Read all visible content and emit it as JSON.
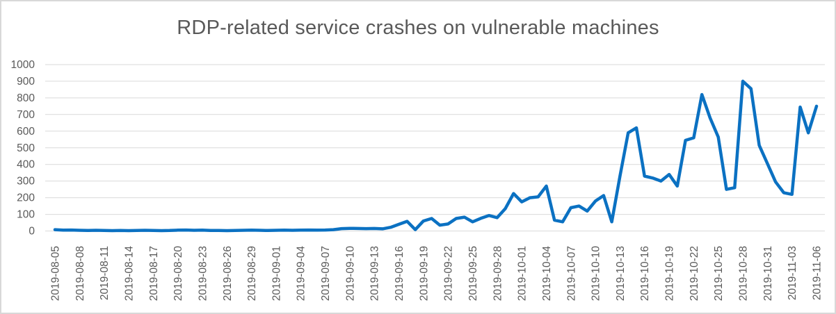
{
  "chart_data": {
    "type": "line",
    "title": "RDP-related service crashes on vulnerable machines",
    "legend": "none",
    "grid": true,
    "ylim": [
      0,
      1000
    ],
    "ytick_step": 100,
    "y_tick_values": [
      0,
      100,
      200,
      300,
      400,
      500,
      600,
      700,
      800,
      900,
      1000
    ],
    "label_every": 3,
    "x_tick_labels": [
      "2019-08-05",
      "2019-08-08",
      "2019-08-11",
      "2019-08-14",
      "2019-08-17",
      "2019-08-20",
      "2019-08-23",
      "2019-08-26",
      "2019-08-29",
      "2019-09-01",
      "2019-09-04",
      "2019-09-07",
      "2019-09-10",
      "2019-09-13",
      "2019-09-16",
      "2019-09-19",
      "2019-09-22",
      "2019-09-25",
      "2019-09-28",
      "2019-10-01",
      "2019-10-04",
      "2019-10-07",
      "2019-10-10",
      "2019-10-13",
      "2019-10-16",
      "2019-10-19",
      "2019-10-22",
      "2019-10-25",
      "2019-10-28",
      "2019-10-31",
      "2019-11-03",
      "2019-11-06"
    ],
    "x": [
      "2019-08-05",
      "2019-08-06",
      "2019-08-07",
      "2019-08-08",
      "2019-08-09",
      "2019-08-10",
      "2019-08-11",
      "2019-08-12",
      "2019-08-13",
      "2019-08-14",
      "2019-08-15",
      "2019-08-16",
      "2019-08-17",
      "2019-08-18",
      "2019-08-19",
      "2019-08-20",
      "2019-08-21",
      "2019-08-22",
      "2019-08-23",
      "2019-08-24",
      "2019-08-25",
      "2019-08-26",
      "2019-08-27",
      "2019-08-28",
      "2019-08-29",
      "2019-08-30",
      "2019-08-31",
      "2019-09-01",
      "2019-09-02",
      "2019-09-03",
      "2019-09-04",
      "2019-09-05",
      "2019-09-06",
      "2019-09-07",
      "2019-09-08",
      "2019-09-09",
      "2019-09-10",
      "2019-09-11",
      "2019-09-12",
      "2019-09-13",
      "2019-09-14",
      "2019-09-15",
      "2019-09-16",
      "2019-09-17",
      "2019-09-18",
      "2019-09-19",
      "2019-09-20",
      "2019-09-21",
      "2019-09-22",
      "2019-09-23",
      "2019-09-24",
      "2019-09-25",
      "2019-09-26",
      "2019-09-27",
      "2019-09-28",
      "2019-09-29",
      "2019-09-30",
      "2019-10-01",
      "2019-10-02",
      "2019-10-03",
      "2019-10-04",
      "2019-10-05",
      "2019-10-06",
      "2019-10-07",
      "2019-10-08",
      "2019-10-09",
      "2019-10-10",
      "2019-10-11",
      "2019-10-12",
      "2019-10-13",
      "2019-10-14",
      "2019-10-15",
      "2019-10-16",
      "2019-10-17",
      "2019-10-18",
      "2019-10-19",
      "2019-10-20",
      "2019-10-21",
      "2019-10-22",
      "2019-10-23",
      "2019-10-24",
      "2019-10-25",
      "2019-10-26",
      "2019-10-27",
      "2019-10-28",
      "2019-10-29",
      "2019-10-30",
      "2019-10-31",
      "2019-11-01",
      "2019-11-02",
      "2019-11-03",
      "2019-11-04",
      "2019-11-05",
      "2019-11-06"
    ],
    "series": [
      {
        "name": "RDP-related service crashes",
        "values": [
          8,
          5,
          6,
          4,
          3,
          4,
          3,
          2,
          3,
          2,
          3,
          4,
          3,
          2,
          3,
          5,
          6,
          4,
          5,
          3,
          3,
          2,
          3,
          4,
          5,
          4,
          3,
          4,
          5,
          4,
          5,
          6,
          5,
          6,
          8,
          14,
          16,
          15,
          14,
          15,
          13,
          22,
          40,
          58,
          8,
          60,
          75,
          35,
          42,
          75,
          83,
          55,
          76,
          93,
          80,
          135,
          225,
          175,
          200,
          205,
          270,
          65,
          55,
          140,
          150,
          120,
          180,
          213,
          55,
          330,
          590,
          620,
          330,
          318,
          300,
          340,
          270,
          545,
          560,
          820,
          680,
          565,
          250,
          260,
          900,
          855,
          515,
          405,
          295,
          230,
          220,
          745,
          590,
          750
        ]
      }
    ],
    "line_color": "#0b71c2",
    "gridline_color": "#d9d9d9",
    "text_color": "#595959",
    "title_color": "#595959",
    "frame_border_color": "#d8d8d8",
    "background_color": "#ffffff"
  }
}
